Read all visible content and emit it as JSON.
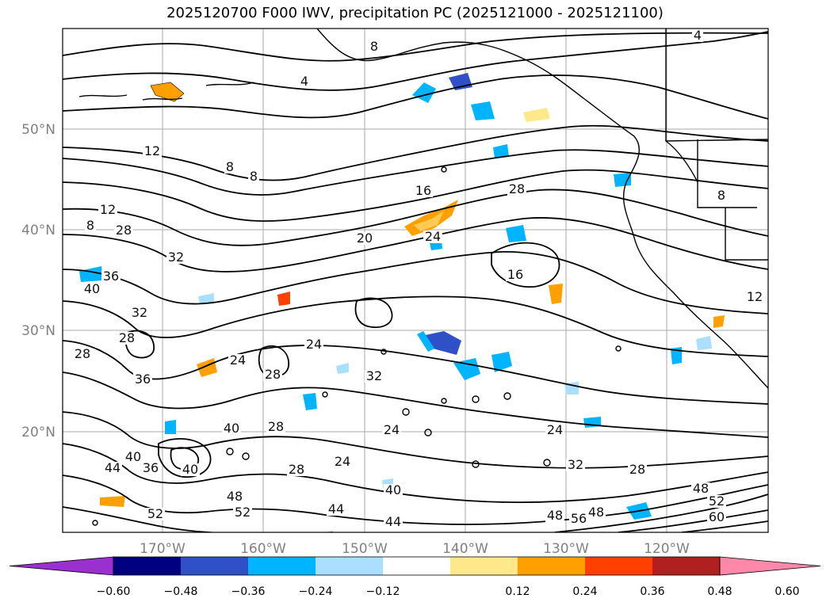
{
  "title": "2025120700 F000 IWV, precipitation PC (2025121000 - 2025121100)",
  "lat_labels": [
    "50°N",
    "40°N",
    "30°N",
    "20°N"
  ],
  "lon_labels": [
    "170°W",
    "160°W",
    "150°W",
    "140°W",
    "130°W",
    "120°W"
  ],
  "colorbar": {
    "ticks": [
      "−0.60",
      "−0.48",
      "−0.36",
      "−0.24",
      "−0.12",
      "0.12",
      "0.24",
      "0.36",
      "0.48",
      "0.60"
    ],
    "colors": [
      "#9b30d0",
      "#000080",
      "#3050c8",
      "#00b4ff",
      "#aadfff",
      "#ffffff",
      "#ffe88a",
      "#ffa000",
      "#ff4000",
      "#b02020",
      "#ff88aa"
    ]
  },
  "contour_labels": [
    "4",
    "4",
    "8",
    "8",
    "8",
    "8",
    "8",
    "12",
    "12",
    "12",
    "16",
    "16",
    "20",
    "24",
    "24",
    "24",
    "24",
    "24",
    "24",
    "28",
    "28",
    "28",
    "28",
    "28",
    "28",
    "28",
    "28",
    "32",
    "32",
    "32",
    "32",
    "36",
    "36",
    "36",
    "40",
    "40",
    "40",
    "40",
    "40",
    "44",
    "44",
    "44",
    "48",
    "48",
    "48",
    "48",
    "52",
    "52",
    "52",
    "56",
    "60"
  ]
}
